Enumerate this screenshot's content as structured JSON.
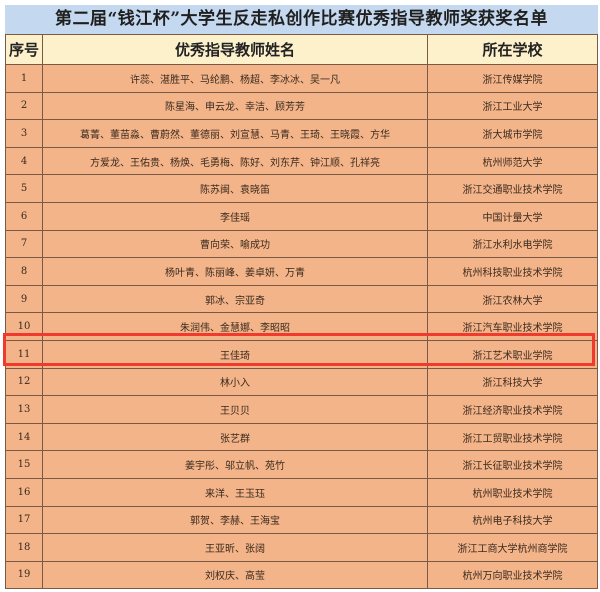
{
  "title": "第二届“钱江杯”大学生反走私创作比赛优秀指导教师奖获奖名单",
  "headers": {
    "seq": "序号",
    "names": "优秀指导教师姓名",
    "school": "所在学校"
  },
  "highlight_color": "#f03a2e",
  "highlighted_row": "11",
  "rows": [
    {
      "seq": "1",
      "names": "许蕊、湛胜平、马纶鹏、杨超、李冰冰、吴一凡",
      "school": "浙江传媒学院"
    },
    {
      "seq": "2",
      "names": "陈星海、申云龙、幸洁、顾芳芳",
      "school": "浙江工业大学"
    },
    {
      "seq": "3",
      "names": "葛菁、董苗淼、曹蔚然、董德丽、刘宣慧、马青、王琦、王晓霞、方华",
      "school": "浙大城市学院"
    },
    {
      "seq": "4",
      "names": "方爱龙、王佑贵、杨焕、毛勇梅、陈好、刘东芹、钟江顺、孔祥亮",
      "school": "杭州师范大学"
    },
    {
      "seq": "5",
      "names": "陈苏闽、袁晓笛",
      "school": "浙江交通职业技术学院"
    },
    {
      "seq": "6",
      "names": "李佳瑶",
      "school": "中国计量大学"
    },
    {
      "seq": "7",
      "names": "曹向荣、喻成功",
      "school": "浙江水利水电学院"
    },
    {
      "seq": "8",
      "names": "杨叶青、陈丽峰、姜卓妍、万青",
      "school": "杭州科技职业技术学院"
    },
    {
      "seq": "9",
      "names": "郭冰、宗亚奇",
      "school": "浙江农林大学"
    },
    {
      "seq": "10",
      "names": "朱润伟、金慧娜、李昭昭",
      "school": "浙江汽车职业技术学院"
    },
    {
      "seq": "11",
      "names": "王佳琦",
      "school": "浙江艺术职业学院"
    },
    {
      "seq": "12",
      "names": "林小入",
      "school": "浙江科技大学"
    },
    {
      "seq": "13",
      "names": "王贝贝",
      "school": "浙江经济职业技术学院"
    },
    {
      "seq": "14",
      "names": "张艺群",
      "school": "浙江工贸职业技术学院"
    },
    {
      "seq": "15",
      "names": "姜宇彤、邬立帆、苑竹",
      "school": "浙江长征职业技术学院"
    },
    {
      "seq": "16",
      "names": "来洋、王玉珏",
      "school": "杭州职业技术学院"
    },
    {
      "seq": "17",
      "names": "郭贺、李赫、王海宝",
      "school": "杭州电子科技大学"
    },
    {
      "seq": "18",
      "names": "王亚昕、张阔",
      "school": "浙江工商大学杭州商学院"
    },
    {
      "seq": "19",
      "names": "刘权庆、高莹",
      "school": "杭州万向职业技术学院"
    }
  ]
}
